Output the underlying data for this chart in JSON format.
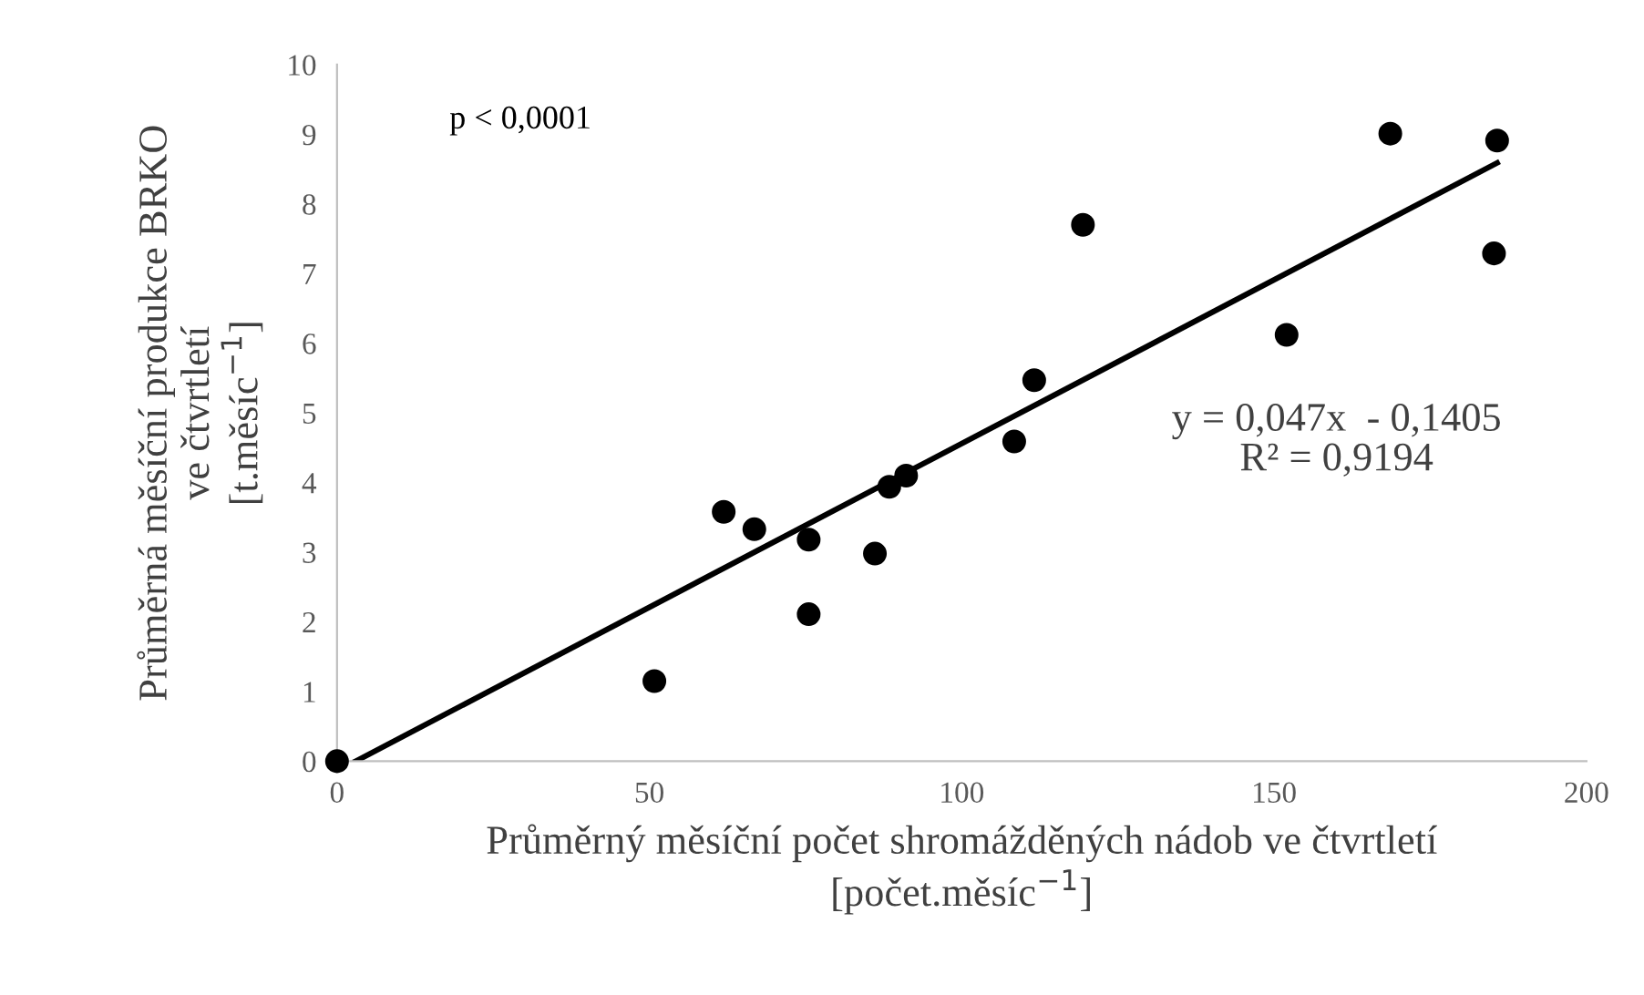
{
  "chart_data": {
    "type": "scatter",
    "xlabel": "Průměrný měsíční počet shromážděných nádob ve čtvrtletí\n[počet.měsíc$^{−1}$]",
    "ylabel": "Průměrná měsíční produkce BRKO\nve čtvrtletí\n[t.měsíc$^{−1}$]",
    "annotations": [
      "p < 0,0001",
      "y = 0,047x  - 0,1405\nR² = 0,9194"
    ],
    "xlim": [
      0,
      200
    ],
    "xticks": [
      0,
      50,
      100,
      150,
      200
    ],
    "ylim": [
      0,
      10
    ],
    "yticks": [
      0,
      1,
      2,
      3,
      4,
      5,
      6,
      7,
      8,
      9,
      10
    ],
    "grid": false,
    "series": [
      {
        "marker": "circle",
        "color": "#000000",
        "x": [
          0,
          50.8,
          61.9,
          66.8,
          75.5,
          75.5,
          86.1,
          88.4,
          91.1,
          108.4,
          111.6,
          119.4,
          152.0,
          168.6,
          185.7,
          185.2
        ],
        "values": [
          0,
          1.15,
          3.58,
          3.33,
          3.18,
          2.11,
          2.98,
          3.94,
          4.1,
          4.59,
          5.47,
          7.7,
          6.12,
          9.01,
          8.91,
          7.29
        ]
      },
      {
        "type": "line",
        "marker": "none",
        "color": "#000000",
        "line_style": "solid",
        "x": [
          3,
          185.7
        ],
        "values": [
          0,
          8.59
        ]
      }
    ]
  }
}
